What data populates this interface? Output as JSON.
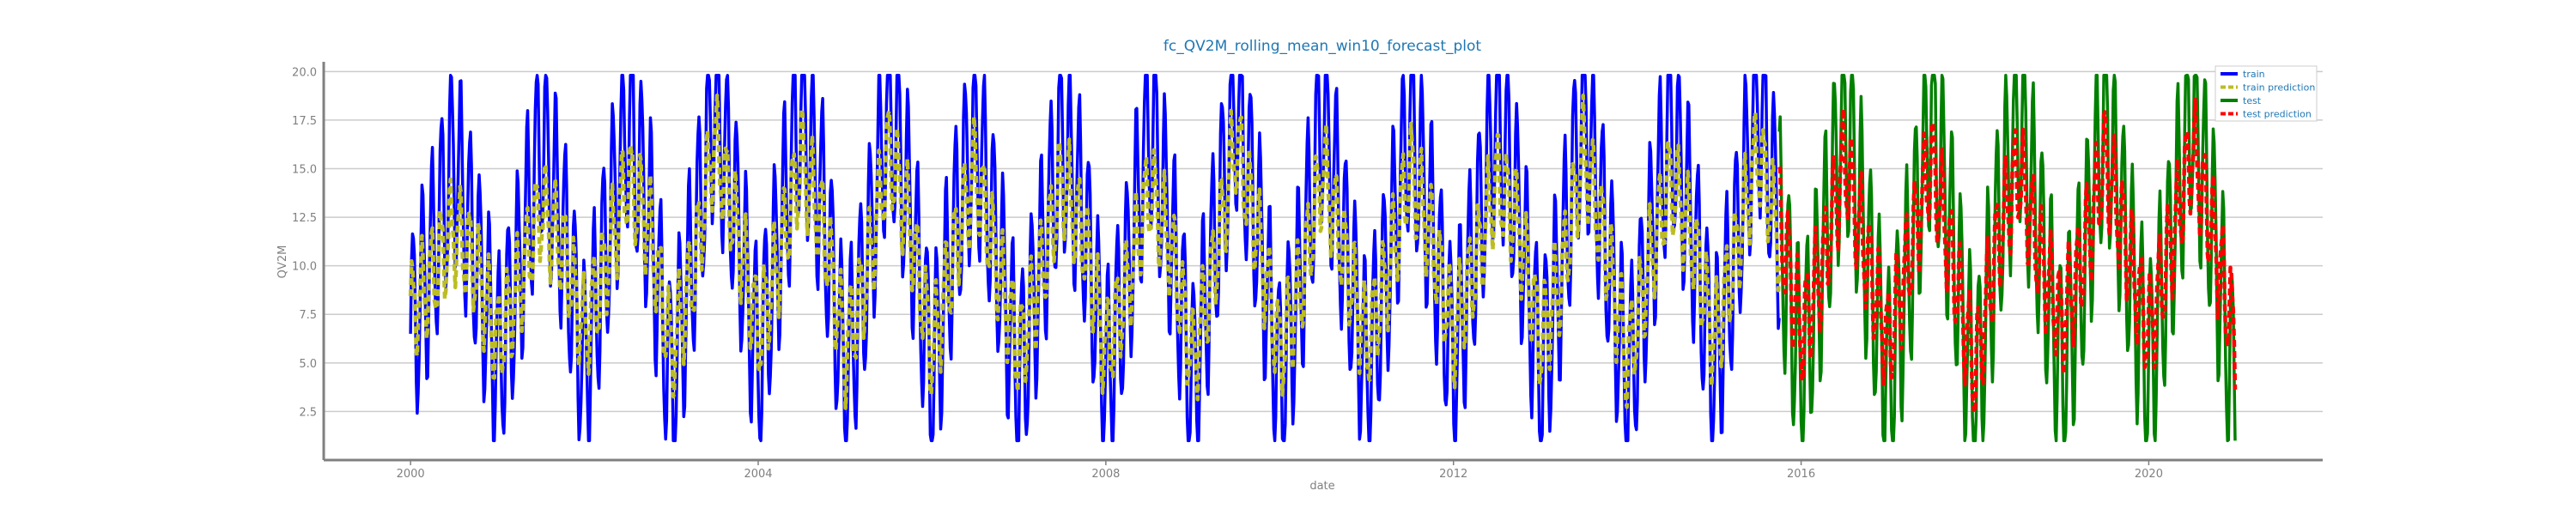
{
  "chart_data": {
    "type": "line",
    "title": "fc_QV2M_rolling_mean_win10_forecast_plot",
    "xlabel": "date",
    "ylabel": "QV2M",
    "xlim": [
      "1999-01-01",
      "2022-01-01"
    ],
    "ylim": [
      0,
      20.5
    ],
    "x_ticks": [
      "2000",
      "2004",
      "2008",
      "2012",
      "2016",
      "2020"
    ],
    "y_ticks": [
      2.5,
      5.0,
      7.5,
      10.0,
      12.5,
      15.0,
      17.5,
      20.0
    ],
    "grid": "horizontal",
    "legend_position": "top-right",
    "series": [
      {
        "name": "train",
        "color": "#0000ff",
        "style": "solid",
        "x": [
          "2000-01-01",
          "2000-04-01",
          "2000-07-01",
          "2000-10-01",
          "2001-01-01",
          "2001-04-01",
          "2001-07-01",
          "2001-10-01",
          "2002-01-01",
          "2002-04-01",
          "2002-07-01",
          "2002-10-01",
          "2003-01-01",
          "2003-04-01",
          "2003-07-01",
          "2003-10-01",
          "2004-01-01",
          "2004-04-01",
          "2004-07-01",
          "2004-10-01",
          "2005-01-01",
          "2005-04-01",
          "2005-07-01",
          "2005-10-01",
          "2006-01-01",
          "2006-04-01",
          "2006-07-01",
          "2006-10-01",
          "2007-01-01",
          "2007-04-01",
          "2007-07-01",
          "2007-10-01",
          "2008-01-01",
          "2008-04-01",
          "2008-07-01",
          "2008-10-01",
          "2009-01-01",
          "2009-04-01",
          "2009-07-01",
          "2009-10-01",
          "2010-01-01",
          "2010-04-01",
          "2010-07-01",
          "2010-10-01",
          "2011-01-01",
          "2011-04-01",
          "2011-07-01",
          "2011-10-01",
          "2012-01-01",
          "2012-04-01",
          "2012-07-01",
          "2012-10-01",
          "2013-01-01",
          "2013-04-01",
          "2013-07-01",
          "2013-10-01",
          "2014-01-01",
          "2014-04-01",
          "2014-07-01",
          "2014-10-01",
          "2015-01-01",
          "2015-04-01",
          "2015-07-01",
          "2015-10-01"
        ],
        "values": [
          6.5,
          10.5,
          15.8,
          10.5,
          5.0,
          9.8,
          16.5,
          12.0,
          4.5,
          11.0,
          17.5,
          12.5,
          3.8,
          10.5,
          18.5,
          12.5,
          5.0,
          11.5,
          18.2,
          13.0,
          4.0,
          10.0,
          18.5,
          12.8,
          4.2,
          11.5,
          17.0,
          11.0,
          4.0,
          10.0,
          16.5,
          12.5,
          4.0,
          9.5,
          17.5,
          11.5,
          3.8,
          11.0,
          18.5,
          12.0,
          4.0,
          9.5,
          18.0,
          11.0,
          4.5,
          10.0,
          17.5,
          12.0,
          5.0,
          11.0,
          18.0,
          12.5,
          4.5,
          10.0,
          18.5,
          11.5,
          3.5,
          10.5,
          17.5,
          12.0,
          4.5,
          11.0,
          18.8,
          12.0
        ]
      },
      {
        "name": "train prediction",
        "color": "#bcbd22",
        "style": "dashed",
        "x": [
          "2000-01-01",
          "2000-04-01",
          "2000-07-01",
          "2000-10-01",
          "2001-01-01",
          "2001-04-01",
          "2001-07-01",
          "2001-10-01",
          "2002-01-01",
          "2002-04-01",
          "2002-07-01",
          "2002-10-01",
          "2003-01-01",
          "2003-04-01",
          "2003-07-01",
          "2003-10-01",
          "2004-01-01",
          "2004-04-01",
          "2004-07-01",
          "2004-10-01",
          "2005-01-01",
          "2005-04-01",
          "2005-07-01",
          "2005-10-01",
          "2006-01-01",
          "2006-04-01",
          "2006-07-01",
          "2006-10-01",
          "2007-01-01",
          "2007-04-01",
          "2007-07-01",
          "2007-10-01",
          "2008-01-01",
          "2008-04-01",
          "2008-07-01",
          "2008-10-01",
          "2009-01-01",
          "2009-04-01",
          "2009-07-01",
          "2009-10-01",
          "2010-01-01",
          "2010-04-01",
          "2010-07-01",
          "2010-10-01",
          "2011-01-01",
          "2011-04-01",
          "2011-07-01",
          "2011-10-01",
          "2012-01-01",
          "2012-04-01",
          "2012-07-01",
          "2012-10-01",
          "2013-01-01",
          "2013-04-01",
          "2013-07-01",
          "2013-10-01",
          "2014-01-01",
          "2014-04-01",
          "2014-07-01",
          "2014-10-01",
          "2015-01-01",
          "2015-04-01",
          "2015-07-01",
          "2015-10-01"
        ],
        "values": [
          7.5,
          9.5,
          12.0,
          10.0,
          6.0,
          9.0,
          13.0,
          11.0,
          6.5,
          10.0,
          14.5,
          12.0,
          5.5,
          9.5,
          16.5,
          12.0,
          6.5,
          10.5,
          15.5,
          12.0,
          5.5,
          9.5,
          16.0,
          12.0,
          5.5,
          10.5,
          15.0,
          10.0,
          5.5,
          9.5,
          14.5,
          11.5,
          5.5,
          9.0,
          14.0,
          11.0,
          5.0,
          10.0,
          16.5,
          11.5,
          5.5,
          9.0,
          15.0,
          10.5,
          6.0,
          9.5,
          15.0,
          11.5,
          6.5,
          10.0,
          14.5,
          12.0,
          6.0,
          9.5,
          16.0,
          11.0,
          5.0,
          10.0,
          14.5,
          11.5,
          6.0,
          10.5,
          16.0,
          11.5
        ]
      },
      {
        "name": "test",
        "color": "#008000",
        "style": "solid",
        "x": [
          "2015-10-01",
          "2016-01-01",
          "2016-04-01",
          "2016-07-01",
          "2016-10-01",
          "2017-01-01",
          "2017-04-01",
          "2017-07-01",
          "2017-10-01",
          "2018-01-01",
          "2018-04-01",
          "2018-07-01",
          "2018-10-01",
          "2019-01-01",
          "2019-04-01",
          "2019-07-01",
          "2019-10-01",
          "2020-01-01",
          "2020-04-01",
          "2020-07-01",
          "2020-10-01",
          "2021-01-01"
        ],
        "values": [
          12.0,
          4.5,
          10.5,
          18.0,
          11.0,
          4.0,
          10.0,
          18.2,
          11.0,
          3.0,
          11.5,
          17.8,
          11.5,
          4.5,
          10.0,
          18.0,
          11.0,
          4.5,
          11.0,
          18.2,
          11.5,
          3.0
        ]
      },
      {
        "name": "test prediction",
        "color": "#ff0000",
        "style": "dashed",
        "x": [
          "2015-10-01",
          "2016-01-01",
          "2016-04-01",
          "2016-07-01",
          "2016-10-01",
          "2017-01-01",
          "2017-04-01",
          "2017-07-01",
          "2017-10-01",
          "2018-01-01",
          "2018-04-01",
          "2018-07-01",
          "2018-10-01",
          "2019-01-01",
          "2019-04-01",
          "2019-07-01",
          "2019-10-01",
          "2020-01-01",
          "2020-04-01",
          "2020-07-01",
          "2020-10-01",
          "2021-01-01"
        ],
        "values": [
          12.5,
          6.5,
          10.0,
          15.5,
          10.5,
          6.0,
          10.5,
          15.5,
          10.0,
          4.5,
          11.0,
          15.0,
          10.5,
          7.0,
          10.5,
          15.5,
          11.0,
          6.5,
          11.0,
          16.0,
          11.5,
          6.0
        ]
      }
    ]
  }
}
